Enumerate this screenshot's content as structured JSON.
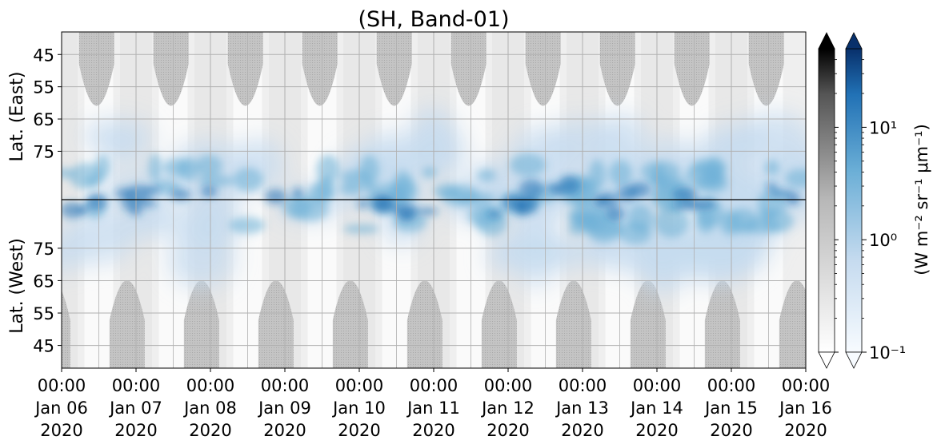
{
  "chart_data": {
    "type": "heatmap",
    "title": "(SH, Band-01)",
    "ylabel_top": "Lat. (East)",
    "ylabel_bottom": "Lat. (West)",
    "y_top_ticks": [
      {
        "value": 45,
        "label": "45"
      },
      {
        "value": 55,
        "label": "55"
      },
      {
        "value": 65,
        "label": "65"
      },
      {
        "value": 75,
        "label": "75"
      }
    ],
    "y_bottom_ticks": [
      {
        "value": 75,
        "label": "75"
      },
      {
        "value": 65,
        "label": "65"
      },
      {
        "value": 55,
        "label": "55"
      },
      {
        "value": 45,
        "label": "45"
      }
    ],
    "x_ticks": [
      {
        "time": "00:00",
        "date": "Jan 06",
        "year": "2020"
      },
      {
        "time": "00:00",
        "date": "Jan 07",
        "year": "2020"
      },
      {
        "time": "00:00",
        "date": "Jan 08",
        "year": "2020"
      },
      {
        "time": "00:00",
        "date": "Jan 09",
        "year": "2020"
      },
      {
        "time": "00:00",
        "date": "Jan 10",
        "year": "2020"
      },
      {
        "time": "00:00",
        "date": "Jan 11",
        "year": "2020"
      },
      {
        "time": "00:00",
        "date": "Jan 12",
        "year": "2020"
      },
      {
        "time": "00:00",
        "date": "Jan 13",
        "year": "2020"
      },
      {
        "time": "00:00",
        "date": "Jan 14",
        "year": "2020"
      },
      {
        "time": "00:00",
        "date": "Jan 15",
        "year": "2020"
      },
      {
        "time": "00:00",
        "date": "Jan 16",
        "year": "2020"
      }
    ],
    "x_range": [
      "2020-01-06 00:00",
      "2020-01-16 00:00"
    ],
    "colorbar": {
      "scale": "log",
      "range": [
        0.1,
        50
      ],
      "label": "(W m⁻² sr⁻¹ μm⁻¹)",
      "ticks": [
        {
          "value": 10,
          "label": "10¹"
        },
        {
          "value": 1,
          "label": "10⁰"
        },
        {
          "value": 0.1,
          "label": "10⁻¹"
        }
      ],
      "colormaps": [
        "Greys",
        "Blues"
      ],
      "extend": "both"
    },
    "grid": true,
    "pole_line": true,
    "colors": {
      "night_gray": "#c0c0c0",
      "bg_gray": "#e8e8e8",
      "blue_light": "#c6dbef",
      "blue_mid": "#6aaed6",
      "blue_dark": "#2171b5",
      "blue_darkest": "#08306b",
      "grid": "#b0b0b0"
    }
  }
}
